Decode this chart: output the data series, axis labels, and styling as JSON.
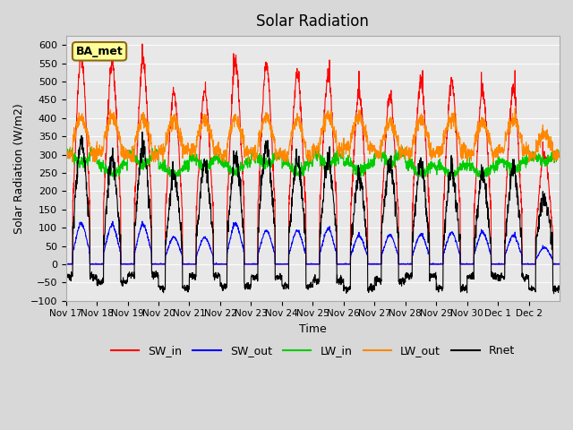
{
  "title": "Solar Radiation",
  "ylabel": "Solar Radiation (W/m2)",
  "xlabel": "Time",
  "ylim": [
    -100,
    625
  ],
  "yticks": [
    -100,
    -50,
    0,
    50,
    100,
    150,
    200,
    250,
    300,
    350,
    400,
    450,
    500,
    550,
    600
  ],
  "background_color": "#d8d8d8",
  "plot_bg_color": "#e8e8e8",
  "annotation": "BA_met",
  "annotation_bg": "#ffff99",
  "annotation_border": "#8b6914",
  "colors": {
    "SW_in": "#ff0000",
    "SW_out": "#0000ff",
    "LW_in": "#00cc00",
    "LW_out": "#ff8800",
    "Rnet": "#000000"
  },
  "x_tick_labels": [
    "Nov 17",
    "Nov 18",
    "Nov 19",
    "Nov 20",
    "Nov 21",
    "Nov 22",
    "Nov 23",
    "Nov 24",
    "Nov 25",
    "Nov 26",
    "Nov 27",
    "Nov 28",
    "Nov 29",
    "Nov 30",
    "Dec 1",
    "Dec 2"
  ],
  "sw_in_peaks": [
    570,
    550,
    555,
    470,
    475,
    550,
    545,
    520,
    515,
    470,
    460,
    505,
    500,
    475,
    480,
    300
  ],
  "num_days": 16
}
